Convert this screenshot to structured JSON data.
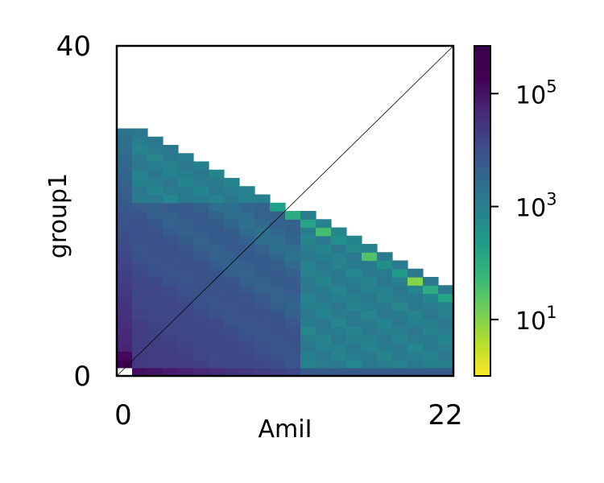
{
  "chart_data": {
    "type": "heatmap",
    "xlabel": "AmiI",
    "ylabel": "group1",
    "xlim": [
      0,
      22
    ],
    "ylim": [
      0,
      40
    ],
    "x_ticks": [
      {
        "value": 0,
        "label": "0"
      },
      {
        "value": 22,
        "label": "22"
      }
    ],
    "y_ticks": [
      {
        "value": 0,
        "label": "0"
      },
      {
        "value": 40,
        "label": "40"
      }
    ],
    "diagonal_line": true,
    "colormap": "viridis_r",
    "color_scale": "log",
    "colorbar": {
      "range": [
        1,
        700000
      ],
      "ticks": [
        {
          "value": 10,
          "base": "10",
          "exponent": "1"
        },
        {
          "value": 1000,
          "base": "10",
          "exponent": "3"
        },
        {
          "value": 100000,
          "base": "10",
          "exponent": "5"
        }
      ]
    },
    "grid": {
      "nx": 22,
      "ny": 40,
      "max_row_per_column": [
        29,
        29,
        28,
        27,
        26,
        25,
        24,
        23,
        22,
        21,
        20,
        19,
        19,
        18,
        17,
        16,
        15,
        14,
        13,
        12,
        11,
        10
      ],
      "highlight_cells": [
        {
          "col": 10,
          "row": 20,
          "value": 200
        },
        {
          "col": 11,
          "row": 19,
          "value": 100
        },
        {
          "col": 12,
          "row": 18,
          "value": 150
        },
        {
          "col": 13,
          "row": 17,
          "value": 40
        },
        {
          "col": 14,
          "row": 16,
          "value": 400
        },
        {
          "col": 15,
          "row": 15,
          "value": 600
        },
        {
          "col": 16,
          "row": 14,
          "value": 30
        },
        {
          "col": 17,
          "row": 13,
          "value": 500
        },
        {
          "col": 18,
          "row": 12,
          "value": 250
        },
        {
          "col": 19,
          "row": 11,
          "value": 10
        },
        {
          "col": 20,
          "row": 10,
          "value": 100
        },
        {
          "col": 21,
          "row": 9,
          "value": 150
        }
      ],
      "empty_cells": [
        {
          "col": 0,
          "row": 0
        }
      ]
    }
  }
}
